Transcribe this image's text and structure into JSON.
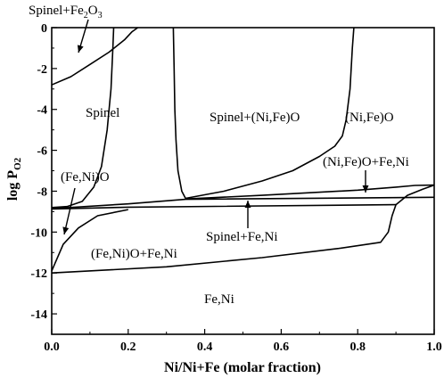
{
  "chart_data": {
    "type": "line",
    "title": "",
    "xlabel": "Ni/Ni+Fe (molar fraction)",
    "ylabel_main": "log P",
    "ylabel_sub": "O2",
    "xlim": [
      0.0,
      1.0
    ],
    "ylim": [
      -15,
      0
    ],
    "x_ticks": [
      "0.0",
      "0.2",
      "0.4",
      "0.6",
      "0.8",
      "1.0"
    ],
    "y_ticks": [
      "0",
      "-2",
      "-4",
      "-6",
      "-8",
      "-10",
      "-12",
      "-14"
    ],
    "regions": {
      "spinel_fe2o3": {
        "main": "Spinel+Fe",
        "sub1": "2",
        "mid": "O",
        "sub2": "3"
      },
      "spinel": "Spinel",
      "spinel_nife_o": "Spinel+(Ni,Fe)O",
      "ni_fe_o": "(Ni,Fe)O",
      "fe_ni_o": "(Fe,Ni)O",
      "ni_fe_o_fe_ni": "(Ni,Fe)O+Fe,Ni",
      "spinel_fe_ni": "Spinel+Fe,Ni",
      "fe_ni_o_fe_ni": "(Fe,Ni)O+Fe,Ni",
      "fe_ni": "Fe,Ni"
    },
    "boundaries": [
      {
        "name": "spinel-fe2o3-boundary",
        "points": [
          [
            0.0,
            -2.8
          ],
          [
            0.05,
            -2.4
          ],
          [
            0.1,
            -1.8
          ],
          [
            0.15,
            -1.2
          ],
          [
            0.19,
            -0.6
          ],
          [
            0.21,
            -0.2
          ],
          [
            0.225,
            0.0
          ]
        ]
      },
      {
        "name": "spinel-left-boundary",
        "points": [
          [
            0.0,
            -8.8
          ],
          [
            0.04,
            -8.75
          ],
          [
            0.08,
            -8.5
          ],
          [
            0.11,
            -7.8
          ],
          [
            0.13,
            -6.8
          ],
          [
            0.145,
            -5.0
          ],
          [
            0.155,
            -3.0
          ],
          [
            0.16,
            -1.0
          ],
          [
            0.162,
            0.0
          ]
        ]
      },
      {
        "name": "spinel-right-boundary",
        "points": [
          [
            0.35,
            -8.35
          ],
          [
            0.34,
            -8.0
          ],
          [
            0.33,
            -7.0
          ],
          [
            0.325,
            -5.5
          ],
          [
            0.322,
            -4.0
          ],
          [
            0.32,
            -2.0
          ],
          [
            0.318,
            0.0
          ]
        ]
      },
      {
        "name": "nife-o-boundary",
        "points": [
          [
            0.35,
            -8.35
          ],
          [
            0.45,
            -8.0
          ],
          [
            0.55,
            -7.5
          ],
          [
            0.63,
            -7.0
          ],
          [
            0.7,
            -6.3
          ],
          [
            0.74,
            -5.8
          ],
          [
            0.76,
            -5.3
          ],
          [
            0.77,
            -4.5
          ],
          [
            0.78,
            -3.0
          ],
          [
            0.786,
            -1.0
          ],
          [
            0.79,
            0.0
          ]
        ]
      },
      {
        "name": "fe-ni-o-boundary",
        "points": [
          [
            0.0,
            -11.9
          ],
          [
            0.03,
            -10.6
          ],
          [
            0.07,
            -9.8
          ],
          [
            0.12,
            -9.2
          ],
          [
            0.2,
            -8.9
          ]
        ]
      },
      {
        "name": "ni-fe-o-fe-ni-boundary",
        "points": [
          [
            0.35,
            -8.38
          ],
          [
            0.55,
            -8.2
          ],
          [
            0.8,
            -7.95
          ],
          [
            0.9,
            -7.8
          ],
          [
            0.95,
            -7.72
          ],
          [
            1.0,
            -7.7
          ]
        ]
      },
      {
        "name": "three-phase-top-line",
        "points": [
          [
            0.0,
            -8.85
          ],
          [
            0.2,
            -8.62
          ],
          [
            0.35,
            -8.4
          ],
          [
            1.0,
            -8.3
          ]
        ]
      },
      {
        "name": "three-phase-bottom-line",
        "points": [
          [
            0.0,
            -8.87
          ],
          [
            0.2,
            -8.78
          ],
          [
            0.9,
            -8.66
          ]
        ]
      },
      {
        "name": "fe-ni-boundary",
        "points": [
          [
            0.0,
            -12.0
          ],
          [
            0.3,
            -11.7
          ],
          [
            0.55,
            -11.25
          ],
          [
            0.75,
            -10.8
          ],
          [
            0.86,
            -10.5
          ],
          [
            0.88,
            -10.0
          ],
          [
            0.89,
            -9.2
          ],
          [
            0.9,
            -8.66
          ],
          [
            0.93,
            -8.2
          ],
          [
            0.97,
            -7.9
          ],
          [
            1.0,
            -7.7
          ]
        ]
      }
    ]
  }
}
